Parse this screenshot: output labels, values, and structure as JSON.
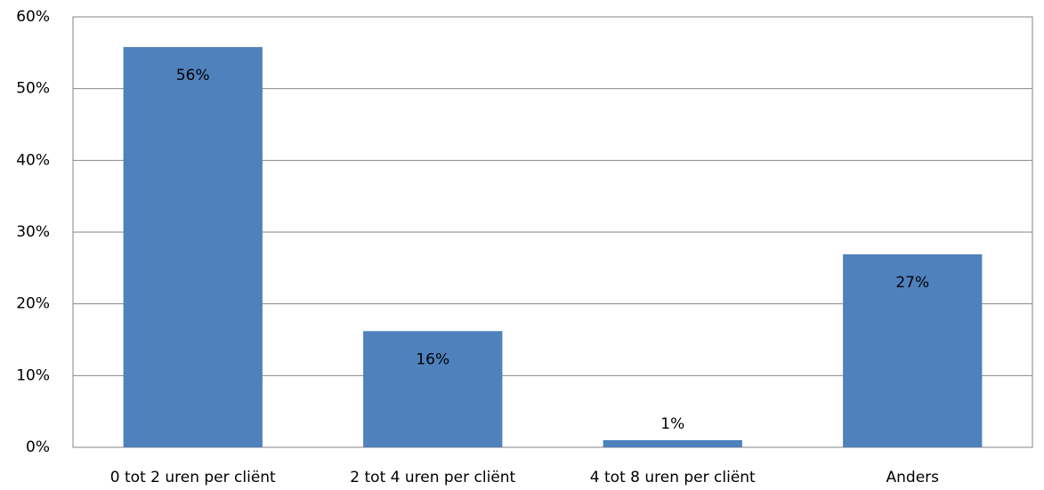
{
  "chart_data": {
    "type": "bar",
    "categories": [
      "0 tot 2 uren per cliënt",
      "2 tot 4 uren per cliënt",
      "4 tot 8 uren per cliënt",
      "Anders"
    ],
    "values": [
      55.8,
      16.2,
      1.0,
      26.9
    ],
    "value_labels": [
      "56%",
      "16%",
      "1%",
      "27%"
    ],
    "color": "#4f81bd",
    "ylim": [
      0,
      60
    ],
    "yticks": [
      {
        "value": 0,
        "label": "0%"
      },
      {
        "value": 10,
        "label": "10%"
      },
      {
        "value": 20,
        "label": "20%"
      },
      {
        "value": 30,
        "label": "30%"
      },
      {
        "value": 40,
        "label": "40%"
      },
      {
        "value": 50,
        "label": "50%"
      },
      {
        "value": 60,
        "label": "60%"
      }
    ],
    "grid": true
  }
}
